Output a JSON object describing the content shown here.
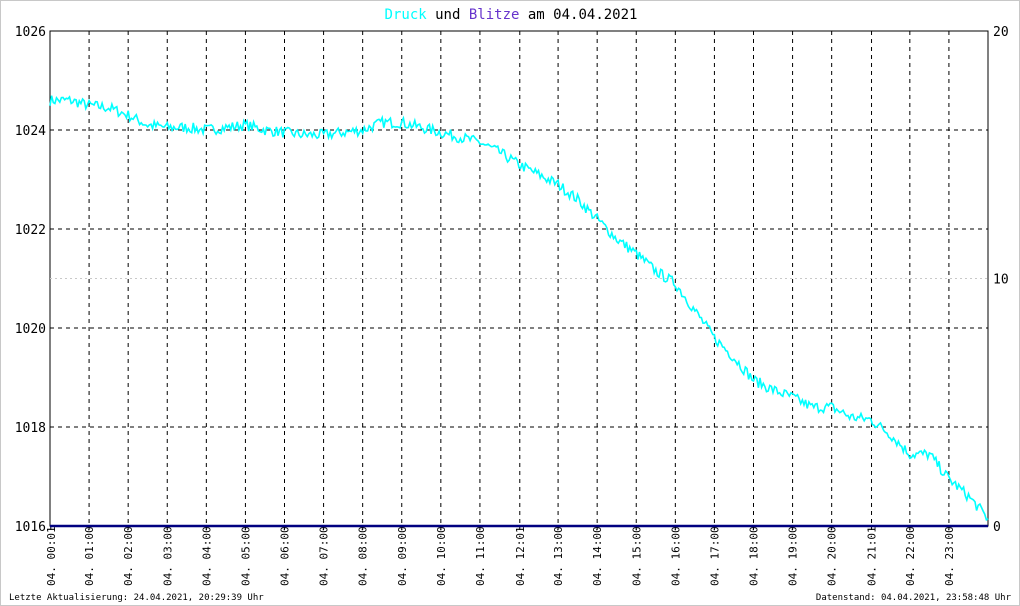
{
  "title": {
    "series1_word": "Druck",
    "connector": "und",
    "series2_word": "Blitze",
    "date_prefix": "am",
    "date": "04.04.2021"
  },
  "colors": {
    "pressure": "#00ffff",
    "lightning": "#6633cc",
    "baseline": "#000080",
    "grid": "#000000",
    "grid_mid": "#c8c8c8",
    "text": "#000000"
  },
  "footer": {
    "left": "Letzte Aktualisierung: 24.04.2021, 20:29:39 Uhr",
    "right": "Datenstand: 04.04.2021, 23:58:48 Uhr"
  },
  "chart_data": {
    "type": "line",
    "title": "Druck und Blitze am 04.04.2021",
    "grid": true,
    "y_left": {
      "ticks": [
        1016,
        1018,
        1020,
        1022,
        1024,
        1026
      ],
      "ylim": [
        1016,
        1026
      ]
    },
    "y_right": {
      "ticks": [
        0,
        10,
        20
      ],
      "ylim": [
        0,
        20
      ]
    },
    "x_range_hours": [
      0,
      24
    ],
    "x_tick_labels": [
      "04. 00:01",
      "04. 01:00",
      "04. 02:00",
      "04. 03:00",
      "04. 04:00",
      "04. 05:00",
      "04. 06:00",
      "04. 07:00",
      "04. 08:00",
      "04. 09:00",
      "04. 10:00",
      "04. 11:00",
      "04. 12:01",
      "04. 13:00",
      "04. 14:00",
      "04. 15:00",
      "04. 16:00",
      "04. 17:00",
      "04. 18:00",
      "04. 19:00",
      "04. 20:00",
      "04. 21:01",
      "04. 22:00",
      "04. 23:00"
    ],
    "x_tick_hours": [
      0.02,
      1,
      2,
      3,
      4,
      5,
      6,
      7,
      8,
      9,
      10,
      11,
      12.02,
      13,
      14,
      15,
      16,
      17,
      18,
      19,
      20,
      21.02,
      22,
      23
    ],
    "series": [
      {
        "name": "Druck",
        "axis": "left",
        "x_hours": [
          0,
          0.5,
          1,
          1.5,
          2,
          2.5,
          3,
          3.5,
          4,
          4.5,
          5,
          5.5,
          6,
          6.5,
          7,
          7.5,
          8,
          8.5,
          9,
          9.5,
          10,
          10.5,
          11,
          11.5,
          12,
          12.5,
          13,
          13.5,
          14,
          14.5,
          15,
          15.5,
          16,
          16.5,
          17,
          17.5,
          18,
          18.5,
          19,
          19.5,
          20,
          20.5,
          21,
          21.5,
          22,
          22.5,
          23,
          23.5,
          24
        ],
        "values": [
          1024.6,
          1024.6,
          1024.5,
          1024.45,
          1024.3,
          1024.1,
          1024.05,
          1024.05,
          1024.0,
          1024.05,
          1024.1,
          1024.0,
          1023.95,
          1023.9,
          1023.9,
          1023.95,
          1024.0,
          1024.15,
          1024.15,
          1024.05,
          1023.95,
          1023.85,
          1023.75,
          1023.55,
          1023.3,
          1023.1,
          1022.9,
          1022.6,
          1022.2,
          1021.8,
          1021.5,
          1021.15,
          1020.9,
          1020.35,
          1019.8,
          1019.4,
          1018.95,
          1018.75,
          1018.6,
          1018.4,
          1018.4,
          1018.2,
          1018.15,
          1017.85,
          1017.45,
          1017.45,
          1016.95,
          1016.6,
          1016.15
        ]
      },
      {
        "name": "Blitze",
        "axis": "right",
        "x_hours": [
          0,
          24
        ],
        "values": [
          0,
          0
        ]
      }
    ]
  }
}
